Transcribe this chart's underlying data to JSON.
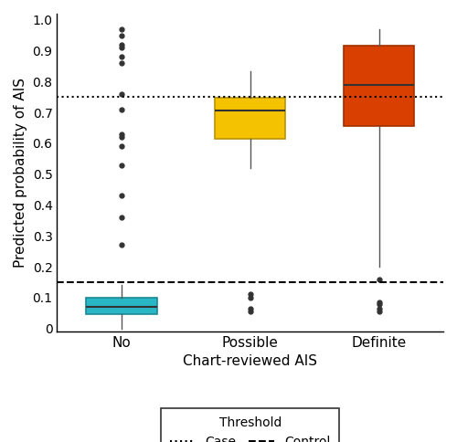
{
  "categories": [
    "No",
    "Possible",
    "Definite"
  ],
  "box_colors": [
    "#29B6C5",
    "#F5C200",
    "#D94000"
  ],
  "box_edge_colors": [
    "#1A8A96",
    "#B8940A",
    "#A03000"
  ],
  "box_data": {
    "No": {
      "whislo": 0.0,
      "q1": 0.045,
      "med": 0.07,
      "q3": 0.1,
      "whishi": 0.14,
      "fliers": [
        0.27,
        0.36,
        0.43,
        0.53,
        0.59,
        0.62,
        0.63,
        0.71,
        0.76,
        0.86,
        0.88,
        0.91,
        0.92,
        0.95,
        0.97
      ]
    },
    "Possible": {
      "whislo": 0.52,
      "q1": 0.615,
      "med": 0.705,
      "q3": 0.748,
      "whishi": 0.835,
      "fliers": [
        0.055,
        0.065,
        0.1,
        0.11
      ]
    },
    "Definite": {
      "whislo": 0.2,
      "q1": 0.655,
      "med": 0.79,
      "q3": 0.915,
      "whishi": 0.97,
      "fliers": [
        0.055,
        0.065,
        0.08,
        0.085,
        0.16
      ]
    }
  },
  "case_threshold": 0.75,
  "control_threshold": 0.15,
  "ylabel": "Predicted probability of AIS",
  "xlabel": "Chart-reviewed AIS",
  "ylim": [
    0,
    1.0
  ],
  "yticks": [
    0,
    0.1,
    0.2,
    0.3,
    0.4,
    0.5,
    0.6,
    0.7,
    0.8,
    0.9,
    1.0
  ],
  "legend_title": "Threshold",
  "legend_case_label": "Case",
  "legend_control_label": "Control",
  "background_color": "#FFFFFF",
  "flier_color": "#333333",
  "box_width": 0.55,
  "median_color": "#333333",
  "whisker_color": "#555555",
  "cap_color": "#555555"
}
